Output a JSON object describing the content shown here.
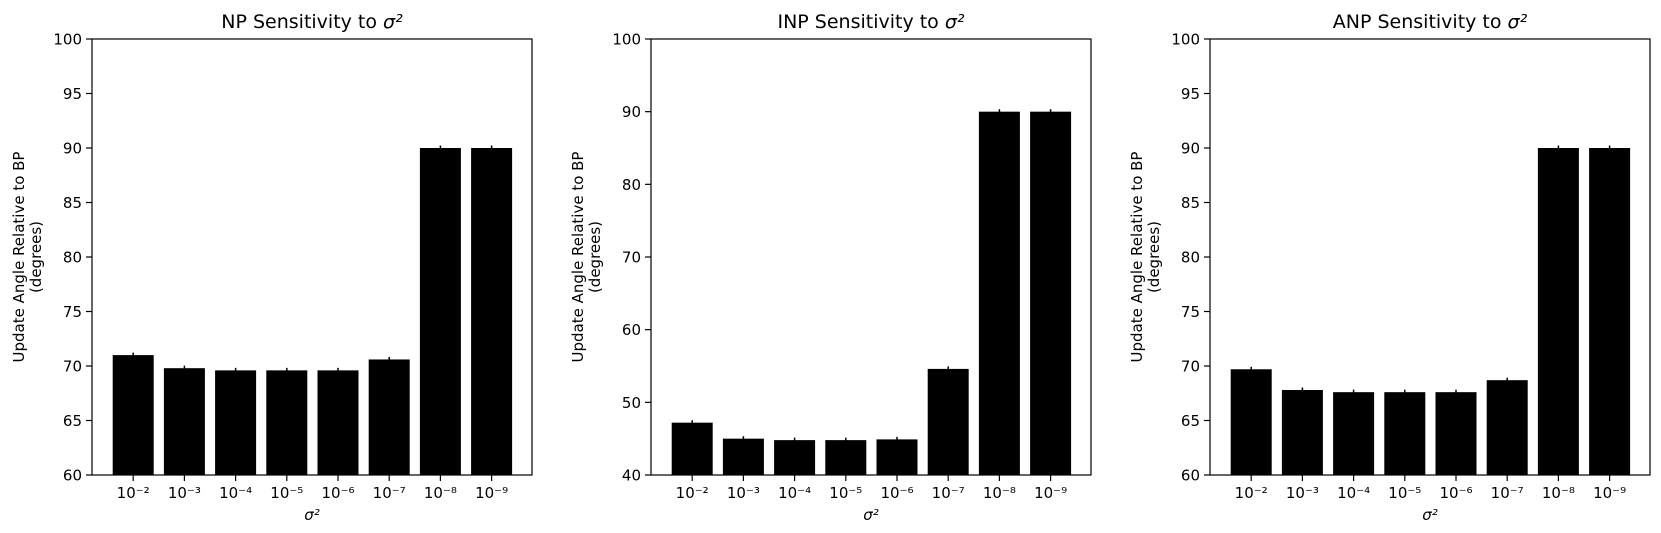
{
  "chart_data": [
    {
      "type": "bar",
      "title": "NP Sensitivity to σ²",
      "title_prefix": "NP Sensitivity to ",
      "xlabel": "σ²",
      "ylabel": [
        "Update Angle Relative to BP",
        "(degrees)"
      ],
      "categories": [
        "10⁻²",
        "10⁻³",
        "10⁻⁴",
        "10⁻⁵",
        "10⁻⁶",
        "10⁻⁷",
        "10⁻⁸",
        "10⁻⁹"
      ],
      "values": [
        71.0,
        69.8,
        69.6,
        69.6,
        69.6,
        70.6,
        90.0,
        90.0
      ],
      "ylim": [
        60,
        100
      ],
      "yticks": [
        60,
        65,
        70,
        75,
        80,
        85,
        90,
        95,
        100
      ],
      "bar_color": "#000000",
      "error_bars": true,
      "grid": false
    },
    {
      "type": "bar",
      "title": "INP Sensitivity to σ²",
      "title_prefix": "INP Sensitivity to ",
      "xlabel": "σ²",
      "ylabel": [
        "Update Angle Relative to BP",
        "(degrees)"
      ],
      "categories": [
        "10⁻²",
        "10⁻³",
        "10⁻⁴",
        "10⁻⁵",
        "10⁻⁶",
        "10⁻⁷",
        "10⁻⁸",
        "10⁻⁹"
      ],
      "values": [
        47.2,
        45.0,
        44.8,
        44.8,
        44.9,
        54.6,
        90.0,
        90.0
      ],
      "ylim": [
        40,
        100
      ],
      "yticks": [
        40,
        50,
        60,
        70,
        80,
        90,
        100
      ],
      "bar_color": "#000000",
      "error_bars": true,
      "grid": false
    },
    {
      "type": "bar",
      "title": "ANP Sensitivity to σ²",
      "title_prefix": "ANP Sensitivity to ",
      "xlabel": "σ²",
      "ylabel": [
        "Update Angle Relative to BP",
        "(degrees)"
      ],
      "categories": [
        "10⁻²",
        "10⁻³",
        "10⁻⁴",
        "10⁻⁵",
        "10⁻⁶",
        "10⁻⁷",
        "10⁻⁸",
        "10⁻⁹"
      ],
      "values": [
        69.7,
        67.8,
        67.6,
        67.6,
        67.6,
        68.7,
        90.0,
        90.0
      ],
      "ylim": [
        60,
        100
      ],
      "yticks": [
        60,
        65,
        70,
        75,
        80,
        85,
        90,
        95,
        100
      ],
      "bar_color": "#000000",
      "error_bars": true,
      "grid": false
    }
  ]
}
